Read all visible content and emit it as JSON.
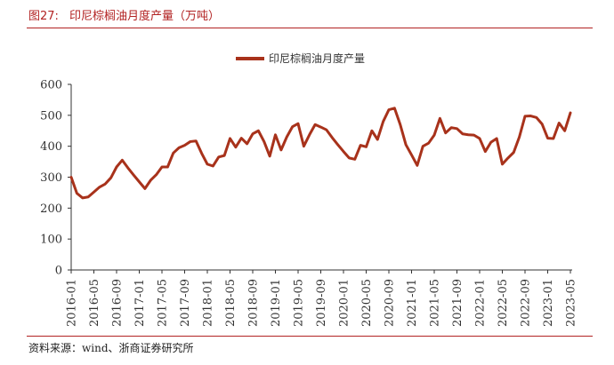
{
  "figure": {
    "number": "图27:",
    "title": "印尼棕榈油月度产量（万吨）"
  },
  "source": "资料来源：wind、浙商证券研究所",
  "colors": {
    "series": "#a8321b",
    "rule": "#b22222"
  },
  "chart_data": {
    "type": "line",
    "title": "印尼棕榈油月度产量（万吨）",
    "xlabel": "",
    "ylabel": "",
    "ylim": [
      0,
      600
    ],
    "yticks": [
      0,
      100,
      200,
      300,
      400,
      500,
      600
    ],
    "grid": false,
    "legend_position": "top-center",
    "x_tick_labels": [
      "2016-01",
      "2016-05",
      "2016-09",
      "2017-01",
      "2017-05",
      "2017-09",
      "2018-01",
      "2018-05",
      "2018-09",
      "2019-01",
      "2019-05",
      "2019-09",
      "2020-01",
      "2020-05",
      "2020-09",
      "2021-01",
      "2021-05",
      "2021-09",
      "2022-01",
      "2022-05",
      "2022-09",
      "2023-01",
      "2023-05"
    ],
    "x": [
      "2016-01",
      "2016-02",
      "2016-03",
      "2016-04",
      "2016-05",
      "2016-06",
      "2016-07",
      "2016-08",
      "2016-09",
      "2016-10",
      "2016-11",
      "2016-12",
      "2017-01",
      "2017-02",
      "2017-03",
      "2017-04",
      "2017-05",
      "2017-06",
      "2017-07",
      "2017-08",
      "2017-09",
      "2017-10",
      "2017-11",
      "2017-12",
      "2018-01",
      "2018-02",
      "2018-03",
      "2018-04",
      "2018-05",
      "2018-06",
      "2018-07",
      "2018-08",
      "2018-09",
      "2018-10",
      "2018-11",
      "2018-12",
      "2019-01",
      "2019-02",
      "2019-03",
      "2019-04",
      "2019-05",
      "2019-06",
      "2019-07",
      "2019-08",
      "2019-09",
      "2019-10",
      "2019-11",
      "2019-12",
      "2020-01",
      "2020-02",
      "2020-03",
      "2020-04",
      "2020-05",
      "2020-06",
      "2020-07",
      "2020-08",
      "2020-09",
      "2020-10",
      "2020-11",
      "2020-12",
      "2021-01",
      "2021-02",
      "2021-03",
      "2021-04",
      "2021-05",
      "2021-06",
      "2021-07",
      "2021-08",
      "2021-09",
      "2021-10",
      "2021-11",
      "2021-12",
      "2022-01",
      "2022-02",
      "2022-03",
      "2022-04",
      "2022-05",
      "2022-06",
      "2022-07",
      "2022-08",
      "2022-09",
      "2022-10",
      "2022-11",
      "2022-12",
      "2023-01",
      "2023-02",
      "2023-03",
      "2023-04",
      "2023-05"
    ],
    "series": [
      {
        "name": "印尼棕榈油月度产量",
        "values": [
          300,
          248,
          233,
          236,
          252,
          268,
          278,
          298,
          333,
          355,
          330,
          307,
          285,
          263,
          290,
          308,
          333,
          333,
          378,
          395,
          403,
          415,
          417,
          377,
          342,
          336,
          365,
          370,
          425,
          397,
          426,
          408,
          440,
          450,
          415,
          368,
          437,
          388,
          430,
          463,
          473,
          400,
          437,
          470,
          462,
          453,
          428,
          405,
          383,
          362,
          358,
          403,
          398,
          450,
          422,
          480,
          518,
          523,
          470,
          405,
          372,
          338,
          400,
          410,
          436,
          490,
          443,
          460,
          457,
          440,
          437,
          436,
          425,
          383,
          413,
          425,
          342,
          362,
          380,
          430,
          497,
          498,
          493,
          472,
          426,
          425,
          475,
          450,
          508
        ]
      }
    ]
  }
}
